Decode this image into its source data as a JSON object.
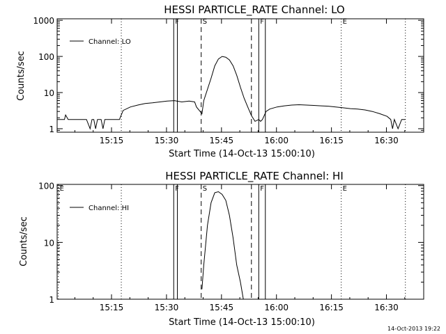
{
  "footer": {
    "timestamp": "14-Oct-2013 19:22"
  },
  "chart_data": [
    {
      "type": "line",
      "title": "HESSI PARTICLE_RATE Channel: LO",
      "xlabel": "Start Time (14-Oct-13 15:00:10)",
      "ylabel": "Counts/sec",
      "y_scale": "log",
      "ylim": [
        0.8,
        1100
      ],
      "xlim_minutes": [
        0,
        100
      ],
      "x_ticks": [
        "15:15",
        "15:30",
        "15:45",
        "16:00",
        "16:15",
        "16:30"
      ],
      "y_ticks": [
        "1",
        "10",
        "100",
        "1000"
      ],
      "legend": {
        "position": "top-left",
        "entries": [
          "Channel: LO"
        ]
      },
      "grid": false,
      "markers": [
        {
          "label": "",
          "minute": 17.5,
          "style": "dotted"
        },
        {
          "label": "F",
          "minute": 31.8,
          "style": "solid"
        },
        {
          "label": "",
          "minute": 32.8,
          "style": "solid"
        },
        {
          "label": "S",
          "minute": 39.3,
          "style": "dashed"
        },
        {
          "label": "",
          "minute": 53.0,
          "style": "dashed"
        },
        {
          "label": "F",
          "minute": 55.0,
          "style": "solid"
        },
        {
          "label": "",
          "minute": 56.8,
          "style": "solid"
        },
        {
          "label": "E",
          "minute": 77.5,
          "style": "dotted"
        },
        {
          "label": "",
          "minute": 95.0,
          "style": "dotted"
        }
      ],
      "series": [
        {
          "name": "Channel: LO",
          "x_minutes": [
            0,
            2,
            2.3,
            3,
            5,
            8,
            9,
            9.5,
            10,
            10.5,
            11,
            12,
            12.5,
            13,
            14,
            15,
            16,
            17,
            18,
            20,
            22,
            24,
            26,
            28,
            30,
            32,
            34,
            36,
            37.5,
            38,
            39.5,
            40,
            42,
            43,
            44,
            45,
            46,
            47,
            48,
            49,
            50,
            51,
            52,
            53,
            54,
            55,
            55.5,
            56,
            57,
            58,
            60,
            62,
            64,
            66,
            68,
            70,
            72,
            74,
            76,
            78,
            80,
            82,
            84,
            86,
            88,
            90,
            91,
            91.5,
            92,
            93,
            94,
            95
          ],
          "y": [
            1.8,
            1.8,
            2.4,
            1.8,
            1.8,
            1.8,
            1,
            1.8,
            1.8,
            1,
            1.8,
            1.8,
            1,
            1.8,
            1.8,
            1.8,
            1.8,
            1.8,
            3.2,
            4,
            4.5,
            5,
            5.2,
            5.5,
            5.8,
            6,
            5.5,
            5.8,
            5.5,
            4,
            2.6,
            6,
            25,
            55,
            85,
            100,
            95,
            80,
            55,
            30,
            14,
            7,
            4,
            2.3,
            1.6,
            1.8,
            1.6,
            1.8,
            3,
            3.5,
            4,
            4.3,
            4.5,
            4.6,
            4.5,
            4.4,
            4.3,
            4.2,
            4,
            3.8,
            3.6,
            3.5,
            3.3,
            3,
            2.6,
            2.2,
            1.8,
            1,
            1.8,
            1,
            1.8,
            1.8
          ]
        }
      ]
    },
    {
      "type": "line",
      "title": "HESSI PARTICLE_RATE Channel: HI",
      "xlabel": "Start Time (14-Oct-13 15:00:10)",
      "ylabel": "Counts/sec",
      "y_scale": "log",
      "ylim": [
        1,
        105
      ],
      "xlim_minutes": [
        0,
        100
      ],
      "x_ticks": [
        "15:15",
        "15:30",
        "15:45",
        "16:00",
        "16:15",
        "16:30"
      ],
      "y_ticks": [
        "1",
        "10",
        "100"
      ],
      "legend": {
        "position": "top-left",
        "entries": [
          "Channel: HI"
        ]
      },
      "grid": false,
      "markers": [
        {
          "label": "E",
          "minute": 0.3,
          "style": "dotted"
        },
        {
          "label": "",
          "minute": 17.5,
          "style": "dotted"
        },
        {
          "label": "F",
          "minute": 31.8,
          "style": "solid"
        },
        {
          "label": "",
          "minute": 32.8,
          "style": "solid"
        },
        {
          "label": "S",
          "minute": 39.3,
          "style": "dashed"
        },
        {
          "label": "",
          "minute": 53.0,
          "style": "dashed"
        },
        {
          "label": "F",
          "minute": 55.0,
          "style": "solid"
        },
        {
          "label": "",
          "minute": 56.8,
          "style": "solid"
        },
        {
          "label": "E",
          "minute": 77.5,
          "style": "dotted"
        },
        {
          "label": "",
          "minute": 95.0,
          "style": "dotted"
        }
      ],
      "series": [
        {
          "name": "Channel: HI",
          "x_minutes": [
            39.5,
            40,
            41,
            42,
            43,
            44,
            45,
            46,
            47,
            48,
            49,
            50,
            50.8
          ],
          "y": [
            1.5,
            4,
            20,
            50,
            75,
            78,
            70,
            55,
            30,
            12,
            4,
            2,
            1
          ]
        }
      ]
    }
  ]
}
